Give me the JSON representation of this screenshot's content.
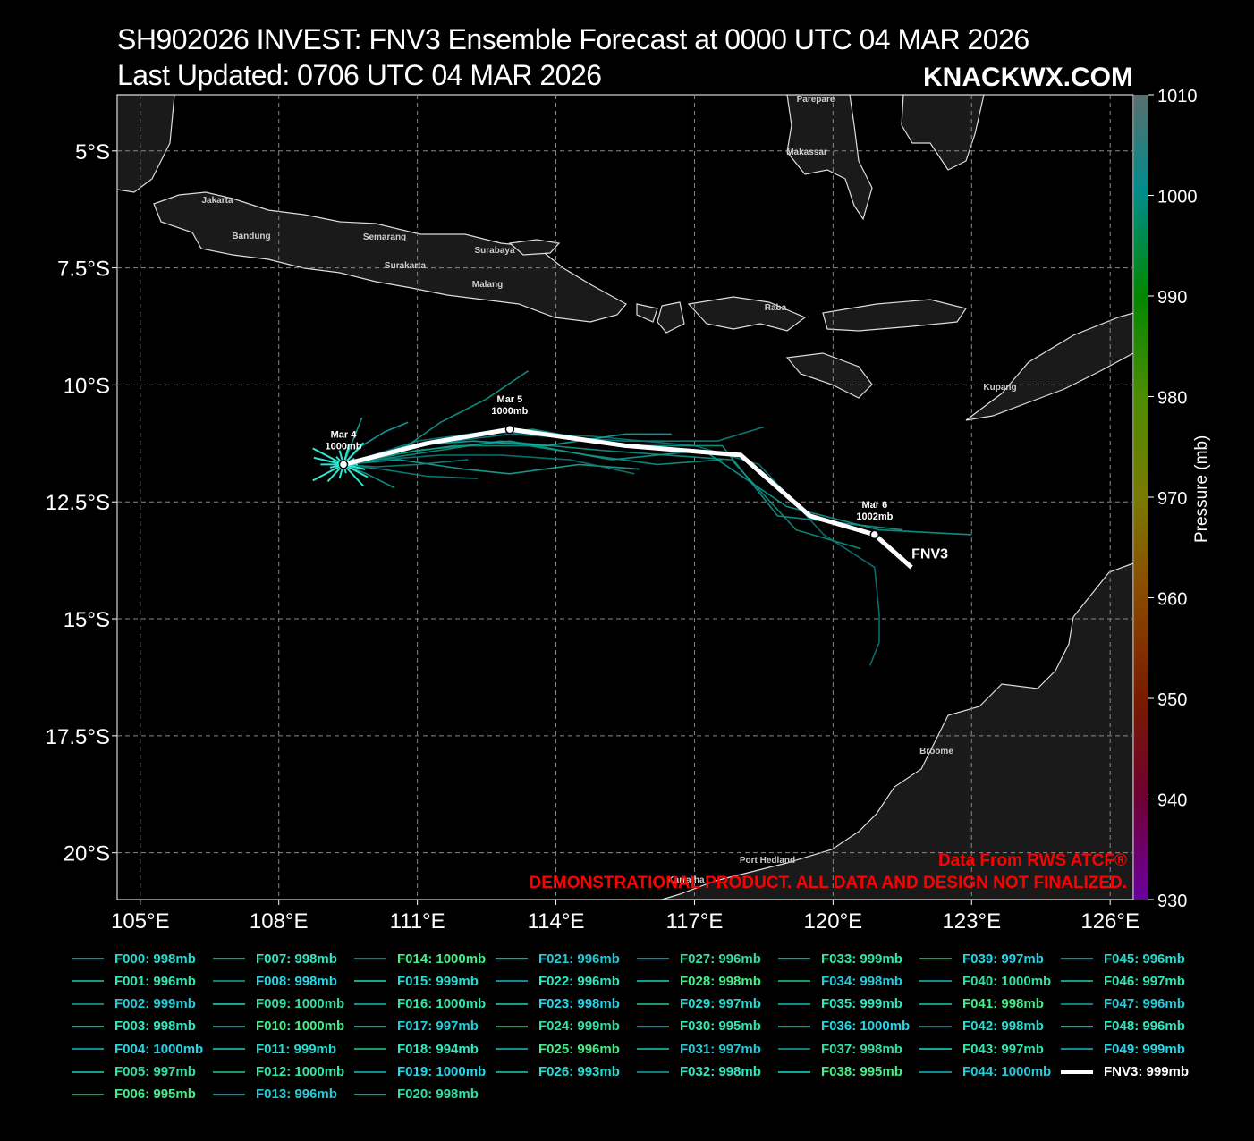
{
  "header": {
    "title": "SH902026 INVEST: FNV3 Ensemble Forecast at 0000 UTC 04 MAR 2026",
    "updated": "Last Updated: 0706 UTC 04 MAR 2026",
    "brand": "KNACKWX.COM"
  },
  "map": {
    "lon_range": [
      104.5,
      126.5
    ],
    "lat_range": [
      -21,
      -3.8
    ],
    "lon_ticks": [
      "105°E",
      "108°E",
      "111°E",
      "114°E",
      "117°E",
      "120°E",
      "123°E",
      "126°E"
    ],
    "lat_ticks": [
      "5°S",
      "7.5°S",
      "10°S",
      "12.5°S",
      "15°S",
      "17.5°S",
      "20°S"
    ],
    "cities": [
      "Parepare",
      "Makassar",
      "Jakarta",
      "Bandung",
      "Semarang",
      "Surabaya",
      "Surakarta",
      "Malang",
      "Raba",
      "Kupang",
      "Broome",
      "Port Hedland",
      "Karratha"
    ],
    "disclaimer_1": "Data From RWS ATCF®",
    "disclaimer_2": "DEMONSTRATIONAL PRODUCT. ALL DATA AND DESIGN NOT FINALIZED.",
    "land_color": "#1a1a1a",
    "accent_red": "#ff0000"
  },
  "track": {
    "name": "FNV3",
    "points": [
      {
        "lon": 109.4,
        "lat": -11.7
      },
      {
        "lon": 111.2,
        "lat": -11.25
      },
      {
        "lon": 113.0,
        "lat": -10.95
      },
      {
        "lon": 115.5,
        "lat": -11.3
      },
      {
        "lon": 118.0,
        "lat": -11.5
      },
      {
        "lon": 119.5,
        "lat": -12.8
      },
      {
        "lon": 120.9,
        "lat": -13.2
      },
      {
        "lon": 121.7,
        "lat": -13.9
      }
    ],
    "markers": [
      {
        "date": "Mar  4",
        "pressure": "1000mb",
        "lon": 109.4,
        "lat": -11.7
      },
      {
        "date": "Mar  5",
        "pressure": "1000mb",
        "lon": 113.0,
        "lat": -10.95
      },
      {
        "date": "Mar  6",
        "pressure": "1002mb",
        "lon": 120.9,
        "lat": -13.2
      }
    ]
  },
  "colorbar": {
    "label": "Pressure (mb)",
    "ticks": [
      "1010",
      "1000",
      "990",
      "980",
      "970",
      "960",
      "950",
      "940",
      "930"
    ]
  },
  "legend": [
    [
      "F000: 998mb",
      "F001: 996mb",
      "F002: 999mb",
      "F003: 998mb",
      "F004: 1000mb",
      "F005: 997mb",
      "F006: 995mb"
    ],
    [
      "F007: 998mb",
      "F008: 998mb",
      "F009: 1000mb",
      "F010: 1000mb",
      "F011: 999mb",
      "F012: 1000mb",
      "F013: 996mb"
    ],
    [
      "F014: 1000mb",
      "F015: 999mb",
      "F016: 1000mb",
      "F017: 997mb",
      "F018: 994mb",
      "F019: 1000mb",
      "F020: 998mb"
    ],
    [
      "F021: 996mb",
      "F022: 996mb",
      "F023: 998mb",
      "F024: 999mb",
      "F025: 996mb",
      "F026: 993mb"
    ],
    [
      "F027: 996mb",
      "F028: 998mb",
      "F029: 997mb",
      "F030: 995mb",
      "F031: 997mb",
      "F032: 998mb"
    ],
    [
      "F033: 999mb",
      "F034: 998mb",
      "F035: 999mb",
      "F036: 1000mb",
      "F037: 998mb",
      "F038: 995mb"
    ],
    [
      "F039: 997mb",
      "F040: 1000mb",
      "F041: 998mb",
      "F042: 998mb",
      "F043: 997mb",
      "F044: 1000mb"
    ],
    [
      "F045: 996mb",
      "F046: 997mb",
      "F047: 996mb",
      "F048: 996mb",
      "F049: 999mb",
      "FNV3: 999mb"
    ]
  ]
}
